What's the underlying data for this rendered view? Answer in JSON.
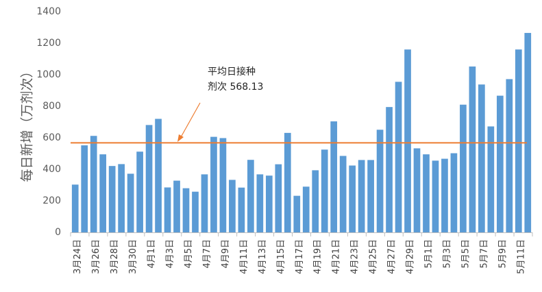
{
  "chart_data": {
    "type": "bar",
    "ylabel": "每日新增（万剂次）",
    "xlabel": "",
    "ylim": [
      0,
      1400
    ],
    "yticks": [
      0,
      200,
      400,
      600,
      800,
      1000,
      1200,
      1400
    ],
    "grid": false,
    "categories": [
      "3月24日",
      "3月25日",
      "3月26日",
      "3月27日",
      "3月28日",
      "3月29日",
      "3月30日",
      "3月31日",
      "4月1日",
      "4月2日",
      "4月3日",
      "4月4日",
      "4月5日",
      "4月6日",
      "4月7日",
      "4月8日",
      "4月9日",
      "4月10日",
      "4月11日",
      "4月12日",
      "4月13日",
      "4月14日",
      "4月15日",
      "4月16日",
      "4月17日",
      "4月18日",
      "4月19日",
      "4月20日",
      "4月21日",
      "4月22日",
      "4月23日",
      "4月24日",
      "4月25日",
      "4月26日",
      "4月27日",
      "4月28日",
      "4月29日",
      "4月30日",
      "5月1日",
      "5月2日",
      "5月3日",
      "5月4日",
      "5月5日",
      "5月6日",
      "5月7日",
      "5月8日",
      "5月9日",
      "5月10日",
      "5月11日",
      "5月12日"
    ],
    "tick_labels": [
      "3月24日",
      "3月26日",
      "3月28日",
      "3月30日",
      "4月1日",
      "4月3日",
      "4月5日",
      "4月7日",
      "4月9日",
      "4月11日",
      "4月13日",
      "4月15日",
      "4月17日",
      "4月19日",
      "4月21日",
      "4月23日",
      "4月25日",
      "4月27日",
      "4月29日",
      "5月1日",
      "5月3日",
      "5月5日",
      "5月7日",
      "5月9日",
      "5月11日"
    ],
    "series": [
      {
        "color": "#5b9bd5",
        "values": [
          303,
          552,
          612,
          495,
          421,
          433,
          372,
          512,
          681,
          720,
          285,
          328,
          280,
          258,
          368,
          606,
          598,
          333,
          284,
          460,
          368,
          360,
          432,
          631,
          232,
          290,
          394,
          525,
          704,
          485,
          424,
          459,
          459,
          651,
          795,
          955,
          1160,
          533,
          495,
          455,
          467,
          502,
          810,
          1052,
          938,
          672,
          867,
          972,
          1160,
          1265
        ]
      }
    ],
    "reference_line": {
      "value": 568.13,
      "color": "#ed7d31"
    },
    "annotation": {
      "line1": "平均日接种",
      "line2": "剂次 568.13"
    }
  }
}
